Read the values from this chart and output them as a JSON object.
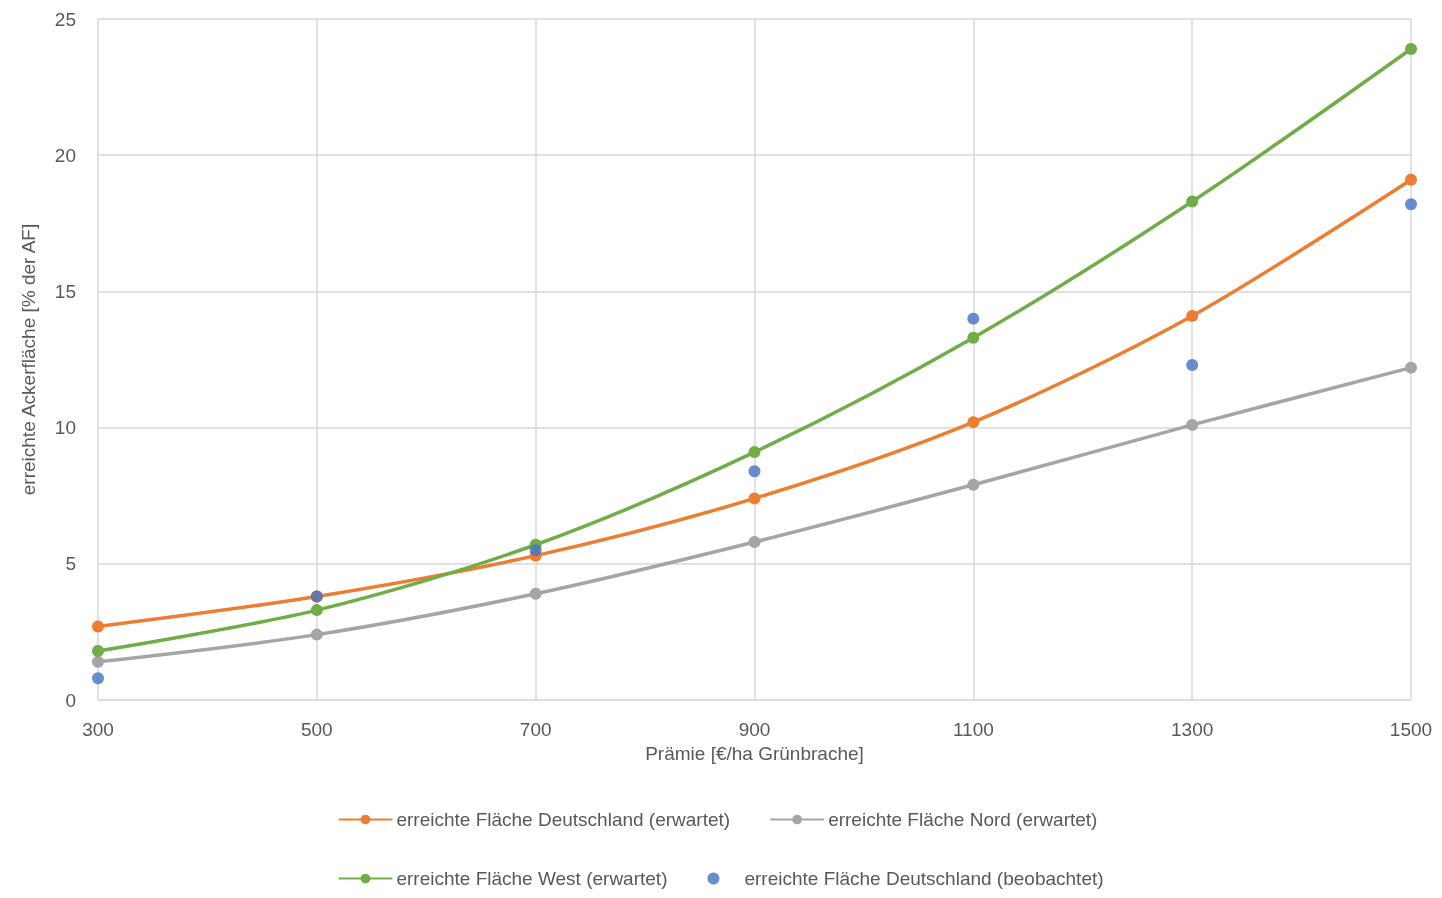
{
  "chart_data": {
    "type": "line",
    "xlabel": "Prämie [€/ha Grünbrache]",
    "ylabel": "erreichte Ackerfläche [% der AF]",
    "x": [
      300,
      500,
      700,
      900,
      1100,
      1300,
      1500
    ],
    "series": [
      {
        "name": "erreichte Fläche Deutschland (erwartet)",
        "color": "#ed7d31",
        "values": [
          2.7,
          3.8,
          5.3,
          7.4,
          10.2,
          14.1,
          19.1
        ]
      },
      {
        "name": "erreichte Fläche Nord (erwartet)",
        "color": "#a5a5a5",
        "values": [
          1.4,
          2.4,
          3.9,
          5.8,
          7.9,
          10.1,
          12.2
        ]
      },
      {
        "name": "erreichte Fläche West (erwartet)",
        "color": "#70ad47",
        "values": [
          1.8,
          3.3,
          5.7,
          9.1,
          13.3,
          18.3,
          23.9
        ]
      },
      {
        "name": "erreichte Fläche Deutschland (beobachtet)",
        "color": "#4472c4",
        "type": "scatter",
        "values": [
          0.8,
          3.8,
          5.5,
          8.4,
          14.0,
          12.3,
          18.2
        ]
      }
    ],
    "xlim": [
      300,
      1500
    ],
    "xticks": [
      300,
      500,
      700,
      900,
      1100,
      1300,
      1500
    ],
    "ylim": [
      0,
      25
    ],
    "yticks": [
      0,
      5,
      10,
      15,
      20,
      25
    ],
    "grid": true,
    "legend": "bottom",
    "marker": "circle",
    "line_style": "solid"
  }
}
